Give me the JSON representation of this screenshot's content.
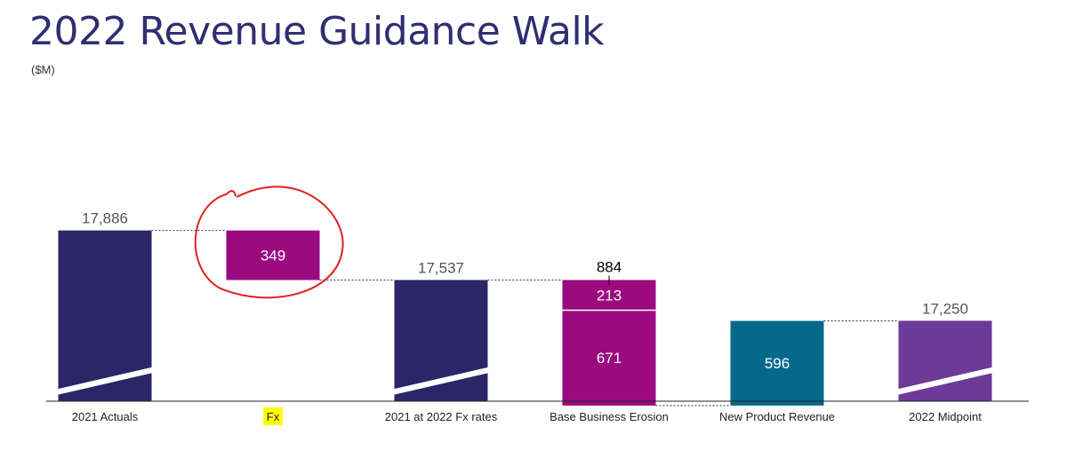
{
  "title": "2022 Revenue Guidance Walk",
  "subtitle": "($M)",
  "colors": {
    "navy": "#2b2666",
    "magenta": "#9b0a7f",
    "teal": "#06698b",
    "purple": "#6d3a97",
    "annotation_circle": "#e01f1f",
    "highlight": "#ffff00",
    "connector": "#333333",
    "axis": "#222222"
  },
  "chart_data": {
    "type": "bar",
    "subtype": "waterfall",
    "axis_break": true,
    "categories": [
      "2021 Actuals",
      "Fx",
      "2021 at 2022 Fx rates",
      "Base Business Erosion",
      "New Product Revenue",
      "2022 Midpoint"
    ],
    "series": [
      {
        "category": "2021 Actuals",
        "kind": "total",
        "value": 17886,
        "label": "17,886",
        "color": "navy"
      },
      {
        "category": "Fx",
        "kind": "decrease",
        "value": 349,
        "label": "349",
        "color": "magenta",
        "annotated": "red-circle",
        "category_highlight": true
      },
      {
        "category": "2021 at 2022 Fx rates",
        "kind": "total",
        "value": 17537,
        "label": "17,537",
        "color": "navy"
      },
      {
        "category": "Base Business Erosion",
        "kind": "decrease",
        "value": 884,
        "label": "884",
        "color": "magenta",
        "segments": [
          {
            "value": 213,
            "label": "213"
          },
          {
            "value": 671,
            "label": "671"
          }
        ]
      },
      {
        "category": "New Product Revenue",
        "kind": "increase",
        "value": 596,
        "label": "596",
        "color": "teal"
      },
      {
        "category": "2022 Midpoint",
        "kind": "total",
        "value": 17250,
        "label": "17,250",
        "color": "purple"
      }
    ]
  }
}
